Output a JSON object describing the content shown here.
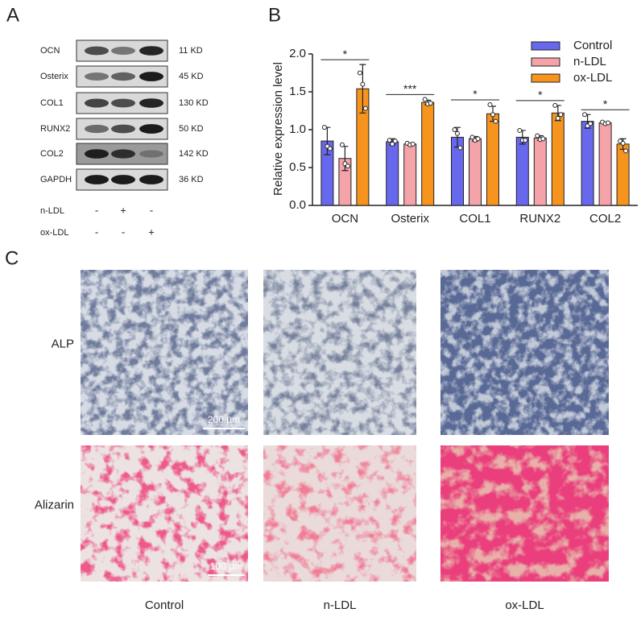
{
  "panel_labels": [
    "A",
    "B",
    "C"
  ],
  "blot": {
    "proteins": [
      "OCN",
      "Osterix",
      "COL1",
      "RUNX2",
      "COL2",
      "GAPDH"
    ],
    "sizes": [
      "11 KD",
      "45 KD",
      "130 KD",
      "50 KD",
      "142 KD",
      "36 KD"
    ],
    "rows": [
      {
        "label": "n-LDL",
        "marks": [
          "-",
          "+",
          "-"
        ]
      },
      {
        "label": "ox-LDL",
        "marks": [
          "-",
          "-",
          "+"
        ]
      }
    ]
  },
  "chart_data": {
    "type": "bar",
    "ylabel": "Relative expression level",
    "categories": [
      "OCN",
      "Osterix",
      "COL1",
      "RUNX2",
      "COL2"
    ],
    "series": [
      {
        "name": "Control",
        "color": "#6868ee",
        "values": [
          0.85,
          0.84,
          0.9,
          0.9,
          1.11
        ],
        "errors": [
          0.18,
          0.04,
          0.13,
          0.09,
          0.09
        ],
        "points": [
          [
            1.03,
            0.78,
            0.75
          ],
          [
            0.86,
            0.81,
            0.85
          ],
          [
            1.0,
            0.95,
            0.76
          ],
          [
            0.99,
            0.86,
            0.86
          ],
          [
            1.2,
            1.05,
            1.08
          ]
        ]
      },
      {
        "name": "n-LDL",
        "color": "#f4a3a8",
        "values": [
          0.62,
          0.81,
          0.88,
          0.89,
          1.09
        ],
        "errors": [
          0.16,
          0.01,
          0.03,
          0.03,
          0.01
        ],
        "points": [
          [
            0.8,
            0.55,
            0.52
          ],
          [
            0.82,
            0.8,
            0.81
          ],
          [
            0.9,
            0.86,
            0.88
          ],
          [
            0.92,
            0.87,
            0.88
          ],
          [
            1.1,
            1.08,
            1.09
          ]
        ]
      },
      {
        "name": "ox-LDL",
        "color": "#f7941d",
        "values": [
          1.54,
          1.36,
          1.21,
          1.22,
          0.81
        ],
        "errors": [
          0.32,
          0.03,
          0.1,
          0.1,
          0.07
        ],
        "points": [
          [
            1.75,
            1.6,
            1.28
          ],
          [
            1.4,
            1.34,
            1.35
          ],
          [
            1.33,
            1.2,
            1.11
          ],
          [
            1.32,
            1.15,
            1.2
          ],
          [
            0.85,
            0.82,
            0.72
          ]
        ]
      }
    ],
    "significance": [
      "*",
      "***",
      "*",
      "*",
      "*"
    ],
    "ylim": [
      0,
      2
    ],
    "yticks": [
      {
        "value": 0,
        "label": "0.0"
      },
      0.5,
      {
        "value": 1,
        "label": "1.0"
      },
      1.5,
      {
        "value": 2,
        "label": "2.0"
      }
    ],
    "legend": "upper right"
  },
  "images": {
    "rows": [
      "ALP",
      "Alizarin"
    ],
    "columns": [
      "Control",
      "n-LDL",
      "ox-LDL"
    ],
    "scale_bars": [
      "200 µm",
      "100 µm"
    ]
  }
}
